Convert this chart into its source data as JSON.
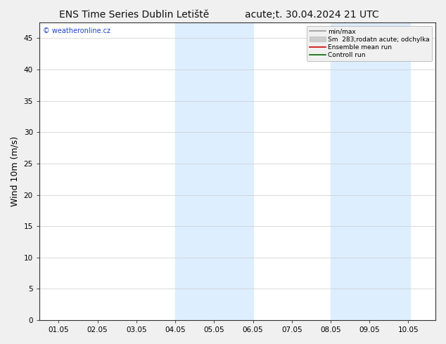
{
  "title_left": "ENS Time Series Dublin Letiště",
  "title_right": "acute;t. 30.04.2024 21 UTC",
  "ylabel": "Wind 10m (m/s)",
  "ylim": [
    0,
    47.5
  ],
  "yticks": [
    0,
    5,
    10,
    15,
    20,
    25,
    30,
    35,
    40,
    45
  ],
  "xtick_labels": [
    "01.05",
    "02.05",
    "03.05",
    "04.05",
    "05.05",
    "06.05",
    "07.05",
    "08.05",
    "09.05",
    "10.05"
  ],
  "xtick_positions": [
    1,
    2,
    3,
    4,
    5,
    6,
    7,
    8,
    9,
    10
  ],
  "xlim": [
    0.5,
    10.7
  ],
  "blue_shade_regions": [
    [
      4.0,
      5.0
    ],
    [
      5.0,
      6.0
    ],
    [
      8.0,
      9.0
    ],
    [
      9.0,
      10.05
    ]
  ],
  "blue_shade_color": "#ddeeff",
  "background_color": "#f0f0f0",
  "plot_bg_color": "#ffffff",
  "watermark": "© weatheronline.cz",
  "watermark_color": "#2244cc",
  "legend_entries": [
    {
      "label": "min/max",
      "color": "#999999",
      "lw": 1.2,
      "type": "line"
    },
    {
      "label": "Sm  283;rodatn acute; odchylka",
      "color": "#cccccc",
      "lw": 5,
      "type": "band"
    },
    {
      "label": "Ensemble mean run",
      "color": "#cc0000",
      "lw": 1.2,
      "type": "line"
    },
    {
      "label": "Controll run",
      "color": "#006600",
      "lw": 1.2,
      "type": "line"
    }
  ],
  "title_fontsize": 10,
  "tick_fontsize": 7.5,
  "ylabel_fontsize": 9
}
